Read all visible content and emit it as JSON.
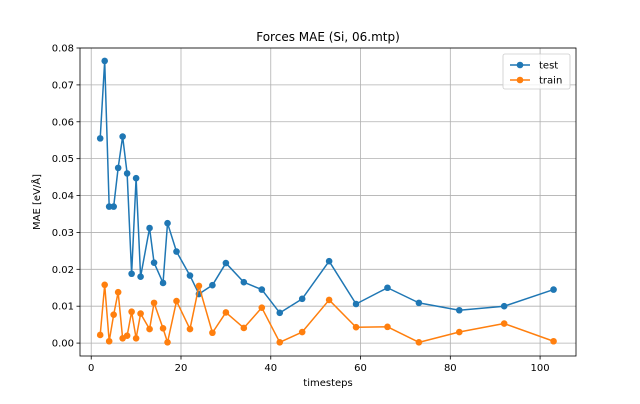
{
  "chart_data": {
    "type": "line",
    "title": "Forces MAE (Si, 06.mtp)",
    "xlabel": "timesteps",
    "ylabel": "MAE [eV/Å]",
    "xlim": [
      -2.5,
      108
    ],
    "ylim": [
      -0.0035,
      0.08
    ],
    "xticks": [
      0,
      20,
      40,
      60,
      80,
      100
    ],
    "yticks": [
      0.0,
      0.01,
      0.02,
      0.03,
      0.04,
      0.05,
      0.06,
      0.07,
      0.08
    ],
    "grid": true,
    "legend_position": "top-right",
    "series": [
      {
        "name": "test",
        "color": "#1f77b4",
        "x": [
          2,
          3,
          4,
          5,
          6,
          7,
          8,
          9,
          10,
          11,
          13,
          14,
          16,
          17,
          19,
          22,
          24,
          27,
          30,
          34,
          38,
          42,
          47,
          53,
          59,
          66,
          73,
          82,
          92,
          103
        ],
        "y": [
          0.0555,
          0.0765,
          0.037,
          0.037,
          0.0475,
          0.056,
          0.046,
          0.0188,
          0.0447,
          0.018,
          0.0312,
          0.0218,
          0.0163,
          0.0325,
          0.0248,
          0.0183,
          0.0133,
          0.0157,
          0.0217,
          0.0165,
          0.0145,
          0.0082,
          0.012,
          0.0222,
          0.0106,
          0.015,
          0.0109,
          0.0089,
          0.01,
          0.0145
        ]
      },
      {
        "name": "train",
        "color": "#ff7f0e",
        "x": [
          2,
          3,
          4,
          5,
          6,
          7,
          8,
          9,
          10,
          11,
          13,
          14,
          16,
          17,
          19,
          22,
          24,
          27,
          30,
          34,
          38,
          42,
          47,
          53,
          59,
          66,
          73,
          82,
          92,
          103
        ],
        "y": [
          0.0022,
          0.0158,
          0.0005,
          0.0077,
          0.0138,
          0.0013,
          0.002,
          0.0085,
          0.0013,
          0.008,
          0.0038,
          0.0109,
          0.004,
          0.0002,
          0.0114,
          0.0038,
          0.0155,
          0.0028,
          0.0083,
          0.0041,
          0.0096,
          0.0002,
          0.003,
          0.0117,
          0.0043,
          0.0044,
          0.0002,
          0.003,
          0.0053,
          0.0005
        ]
      }
    ]
  }
}
